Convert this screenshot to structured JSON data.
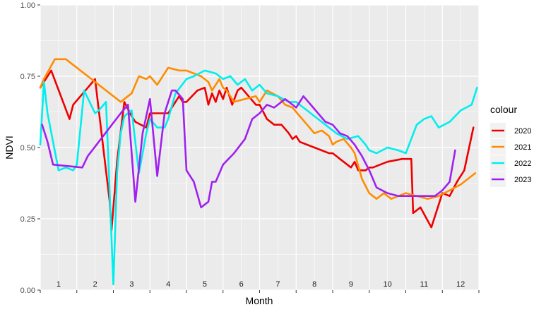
{
  "chart_data": {
    "type": "line",
    "xlabel": "Month",
    "ylabel": "NDVI",
    "xlim": [
      1,
      13
    ],
    "ylim": [
      0,
      1
    ],
    "yticks": [
      "0.00",
      "0.25",
      "0.50",
      "0.75",
      "1.00"
    ],
    "month_labels": [
      "1",
      "2",
      "3",
      "4",
      "5",
      "6",
      "7",
      "8",
      "9",
      "10",
      "11",
      "12"
    ],
    "grid": true,
    "legend": {
      "title": "colour",
      "position": "right"
    },
    "series": [
      {
        "name": "2020",
        "color": "#ee0000",
        "x": [
          1.0,
          1.3,
          1.8,
          1.9,
          2.3,
          2.5,
          2.9,
          2.95,
          3.1,
          3.3,
          3.5,
          3.6,
          3.9,
          4.0,
          4.05,
          4.5,
          4.8,
          4.9,
          5.0,
          5.3,
          5.5,
          5.6,
          5.7,
          5.8,
          5.9,
          6.0,
          6.1,
          6.2,
          6.25,
          6.4,
          6.5,
          6.7,
          6.9,
          7.0,
          7.2,
          7.4,
          7.6,
          7.8,
          7.9,
          8.0,
          8.1,
          8.3,
          8.5,
          8.7,
          8.9,
          9.0,
          9.1,
          9.2,
          9.5,
          9.6,
          9.7,
          9.9,
          10.0,
          10.1,
          10.3,
          10.5,
          10.9,
          11.15,
          11.2,
          11.4,
          11.7,
          11.9,
          12.0,
          12.2,
          12.4,
          12.6,
          12.85
        ],
        "y": [
          0.71,
          0.77,
          0.6,
          0.65,
          0.71,
          0.74,
          0.31,
          0.21,
          0.45,
          0.66,
          0.61,
          0.59,
          0.57,
          0.62,
          0.62,
          0.62,
          0.68,
          0.66,
          0.66,
          0.7,
          0.71,
          0.65,
          0.69,
          0.66,
          0.7,
          0.67,
          0.71,
          0.67,
          0.65,
          0.7,
          0.71,
          0.68,
          0.65,
          0.65,
          0.6,
          0.58,
          0.58,
          0.55,
          0.53,
          0.54,
          0.52,
          0.51,
          0.5,
          0.49,
          0.48,
          0.48,
          0.47,
          0.46,
          0.43,
          0.45,
          0.42,
          0.42,
          0.43,
          0.43,
          0.44,
          0.45,
          0.46,
          0.46,
          0.27,
          0.29,
          0.22,
          0.3,
          0.34,
          0.33,
          0.38,
          0.42,
          0.57
        ]
      },
      {
        "name": "2021",
        "color": "#ff8c00",
        "x": [
          1.0,
          1.1,
          1.4,
          1.7,
          2.3,
          2.9,
          3.2,
          3.3,
          3.5,
          3.7,
          3.9,
          4.0,
          4.2,
          4.5,
          4.8,
          5.0,
          5.2,
          5.4,
          5.6,
          5.7,
          5.9,
          6.0,
          6.1,
          6.3,
          6.6,
          6.9,
          7.0,
          7.2,
          7.5,
          7.7,
          7.9,
          8.1,
          8.3,
          8.5,
          8.7,
          8.9,
          9.0,
          9.1,
          9.3,
          9.5,
          9.6,
          9.8,
          10.0,
          10.2,
          10.4,
          10.6,
          10.8,
          11.0,
          11.3,
          11.6,
          11.9,
          12.2,
          12.5,
          12.7,
          12.9
        ],
        "y": [
          0.71,
          0.74,
          0.81,
          0.81,
          0.75,
          0.69,
          0.66,
          0.67,
          0.69,
          0.75,
          0.74,
          0.75,
          0.72,
          0.78,
          0.77,
          0.77,
          0.76,
          0.75,
          0.73,
          0.7,
          0.74,
          0.71,
          0.7,
          0.66,
          0.67,
          0.68,
          0.66,
          0.7,
          0.68,
          0.65,
          0.64,
          0.61,
          0.58,
          0.55,
          0.56,
          0.54,
          0.51,
          0.52,
          0.53,
          0.5,
          0.48,
          0.39,
          0.34,
          0.32,
          0.34,
          0.32,
          0.33,
          0.34,
          0.33,
          0.32,
          0.33,
          0.35,
          0.37,
          0.39,
          0.41
        ]
      },
      {
        "name": "2022",
        "color": "#00eeee",
        "x": [
          1.0,
          1.1,
          1.2,
          1.5,
          1.7,
          1.9,
          2.0,
          2.2,
          2.5,
          2.6,
          2.8,
          3.0,
          3.1,
          3.2,
          3.3,
          3.5,
          3.7,
          3.9,
          4.0,
          4.2,
          4.4,
          4.5,
          4.7,
          5.0,
          5.2,
          5.5,
          5.8,
          6.0,
          6.2,
          6.4,
          6.6,
          6.8,
          7.0,
          7.2,
          7.5,
          7.8,
          8.0,
          8.3,
          8.6,
          8.9,
          9.1,
          9.4,
          9.7,
          9.9,
          10.0,
          10.2,
          10.5,
          10.8,
          11.0,
          11.3,
          11.5,
          11.7,
          11.9,
          12.2,
          12.5,
          12.8,
          12.95
        ],
        "y": [
          0.51,
          0.73,
          0.62,
          0.42,
          0.43,
          0.42,
          0.44,
          0.7,
          0.62,
          0.63,
          0.66,
          0.02,
          0.41,
          0.55,
          0.61,
          0.63,
          0.41,
          0.55,
          0.6,
          0.57,
          0.57,
          0.6,
          0.69,
          0.74,
          0.75,
          0.77,
          0.76,
          0.74,
          0.75,
          0.72,
          0.74,
          0.7,
          0.72,
          0.69,
          0.68,
          0.66,
          0.66,
          0.63,
          0.6,
          0.57,
          0.55,
          0.53,
          0.54,
          0.51,
          0.49,
          0.48,
          0.5,
          0.49,
          0.48,
          0.58,
          0.6,
          0.61,
          0.57,
          0.59,
          0.63,
          0.65,
          0.71
        ]
      },
      {
        "name": "2023",
        "color": "#a020f0",
        "x": [
          1.05,
          1.2,
          1.35,
          2.15,
          2.3,
          2.6,
          2.9,
          3.2,
          3.4,
          3.6,
          3.8,
          4.0,
          4.2,
          4.4,
          4.6,
          4.7,
          4.9,
          5.0,
          5.2,
          5.4,
          5.6,
          5.7,
          5.8,
          6.0,
          6.3,
          6.6,
          6.8,
          7.0,
          7.2,
          7.4,
          7.7,
          8.0,
          8.2,
          8.4,
          8.6,
          8.8,
          9.0,
          9.2,
          9.4,
          9.6,
          9.8,
          10.0,
          10.2,
          10.5,
          10.8,
          11.0,
          11.2,
          11.5,
          11.8,
          12.0,
          12.2,
          12.35
        ],
        "y": [
          0.58,
          0.52,
          0.44,
          0.43,
          0.47,
          0.52,
          0.57,
          0.62,
          0.65,
          0.31,
          0.55,
          0.67,
          0.4,
          0.62,
          0.7,
          0.7,
          0.67,
          0.42,
          0.38,
          0.29,
          0.31,
          0.38,
          0.38,
          0.44,
          0.48,
          0.53,
          0.6,
          0.62,
          0.65,
          0.64,
          0.67,
          0.64,
          0.68,
          0.65,
          0.62,
          0.59,
          0.58,
          0.55,
          0.54,
          0.51,
          0.47,
          0.42,
          0.36,
          0.34,
          0.33,
          0.33,
          0.33,
          0.33,
          0.33,
          0.35,
          0.38,
          0.49
        ]
      }
    ]
  }
}
